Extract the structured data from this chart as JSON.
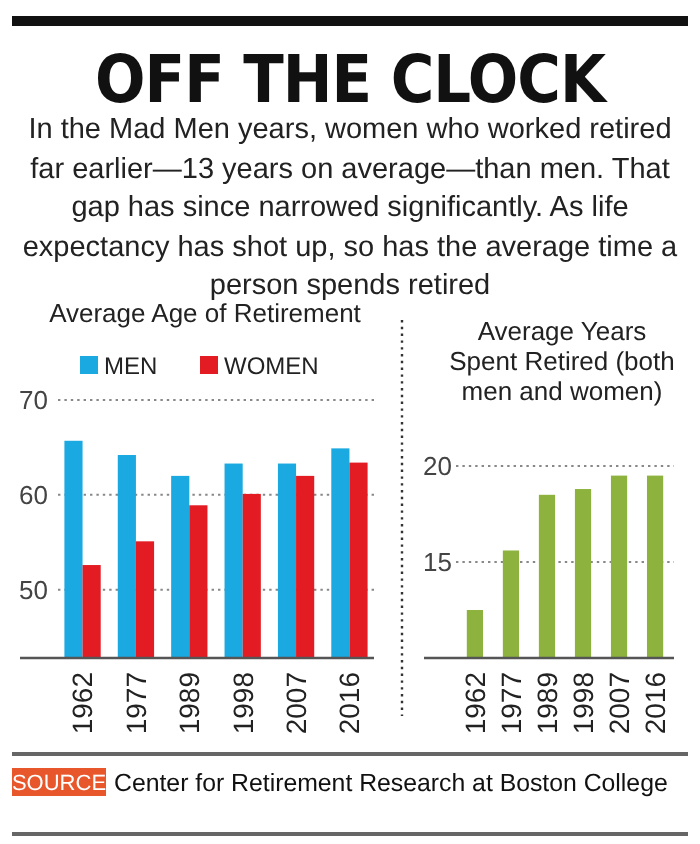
{
  "chart_data": [
    {
      "type": "bar",
      "title": "OFF THE CLOCK",
      "subtitle": "In the Mad Men years, women who worked retired far earlier—13 years on average—than men. That gap has since narrowed significantly. As life expectancy has shot up, so has the average time a person spends retired",
      "xlabel": "Average Age of Retirement",
      "categories": [
        "1962",
        "1977",
        "1989",
        "1998",
        "2007",
        "2016"
      ],
      "series": [
        {
          "name": "MEN",
          "color": "#1aa9e0",
          "values": [
            65.7,
            64.2,
            62.0,
            63.3,
            63.3,
            64.9
          ]
        },
        {
          "name": "WOMEN",
          "color": "#e31b23",
          "values": [
            52.6,
            55.1,
            58.9,
            60.1,
            62.0,
            63.4
          ]
        }
      ],
      "ylim": [
        42.8,
        70
      ],
      "yticks": [
        50,
        60,
        70
      ],
      "grid": "y",
      "legend": "top left",
      "annotations": [
        "SOURCE",
        "Center for Retirement Research at Boston College"
      ]
    },
    {
      "type": "bar",
      "title": "Average Years Spent Retired (both men and women)",
      "categories": [
        "1962",
        "1977",
        "1989",
        "1998",
        "2007",
        "2016"
      ],
      "series": [
        {
          "color": "#8db33e",
          "values": [
            12.5,
            15.6,
            18.5,
            18.8,
            19.5,
            19.5
          ]
        }
      ],
      "ylim": [
        10,
        20
      ],
      "yticks": [
        15,
        20
      ],
      "grid": "y"
    }
  ]
}
